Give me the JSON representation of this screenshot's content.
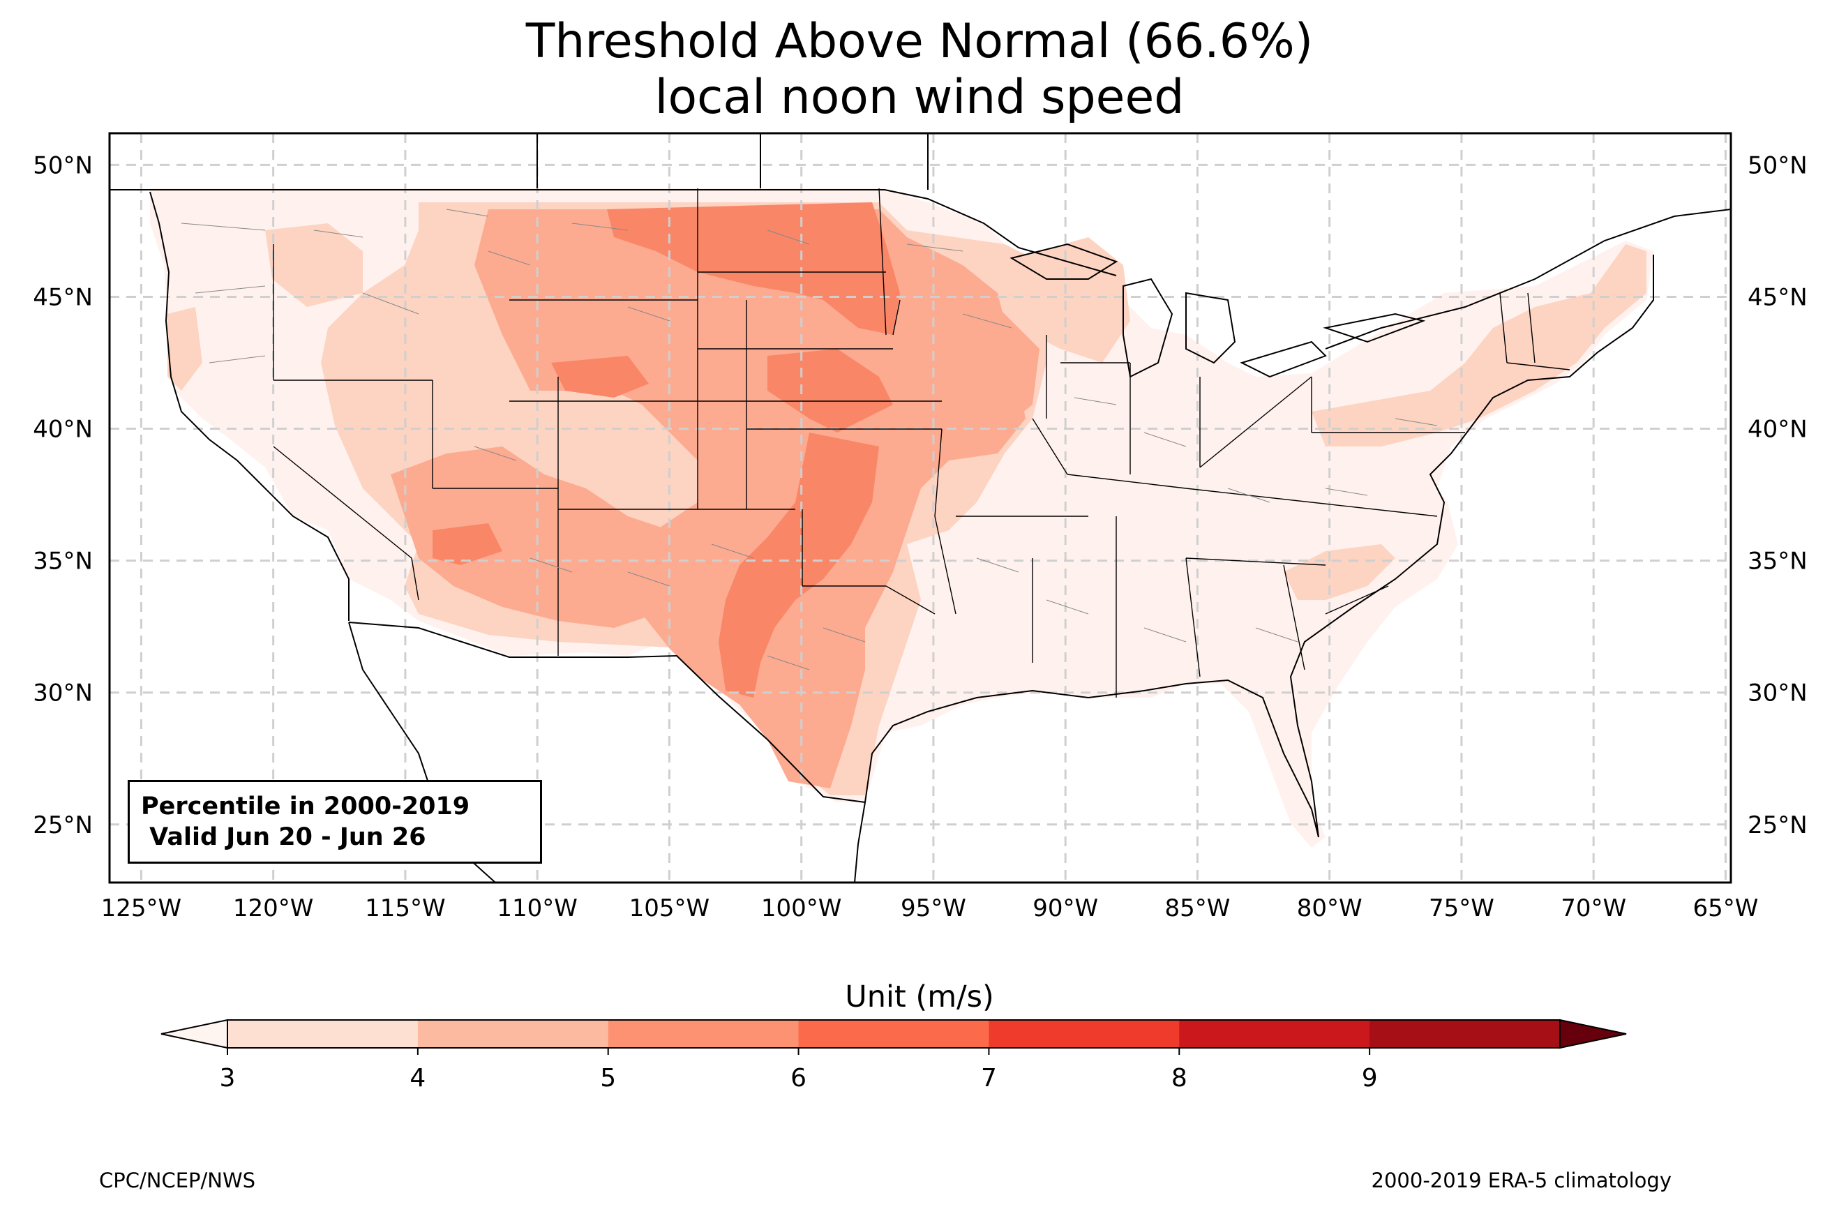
{
  "title": {
    "line1": "Threshold Above Normal (66.6%)",
    "line2": "local noon wind speed"
  },
  "map": {
    "lon_ticks": [
      "125°W",
      "120°W",
      "115°W",
      "110°W",
      "105°W",
      "100°W",
      "95°W",
      "90°W",
      "85°W",
      "80°W",
      "75°W",
      "70°W",
      "65°W"
    ],
    "lat_ticks": [
      "50°N",
      "45°N",
      "40°N",
      "35°N",
      "30°N",
      "25°N"
    ],
    "lon_values": [
      -125,
      -120,
      -115,
      -110,
      -105,
      -100,
      -95,
      -90,
      -85,
      -80,
      -75,
      -70,
      -65
    ],
    "lat_values": [
      50,
      45,
      40,
      35,
      30,
      25
    ],
    "extent": {
      "lon_min": -126.2,
      "lon_max": -64.8,
      "lat_min": 22.8,
      "lat_max": 51.2
    },
    "gridlines": true
  },
  "legend_box": {
    "line1": "Percentile in 2000-2019",
    "line2": " Valid Jun 20 - Jun 26"
  },
  "colorbar": {
    "title": "Unit (m/s)",
    "ticks": [
      "3",
      "4",
      "5",
      "6",
      "7",
      "8",
      "9"
    ],
    "colors": [
      "#fee0d2",
      "#fcbba1",
      "#fc9272",
      "#fb6a4a",
      "#ef3b2c",
      "#cb181d",
      "#a50f15"
    ],
    "under_color": "#fff5f0",
    "over_color": "#67000d"
  },
  "footer": {
    "left": "CPC/NCEP/NWS",
    "right": "2000-2019 ERA-5 climatology"
  },
  "colors": {
    "level_3": "#fff2ee",
    "level_4": "#fdd3c2",
    "level_5": "#fcab91",
    "level_6": "#f98667"
  }
}
